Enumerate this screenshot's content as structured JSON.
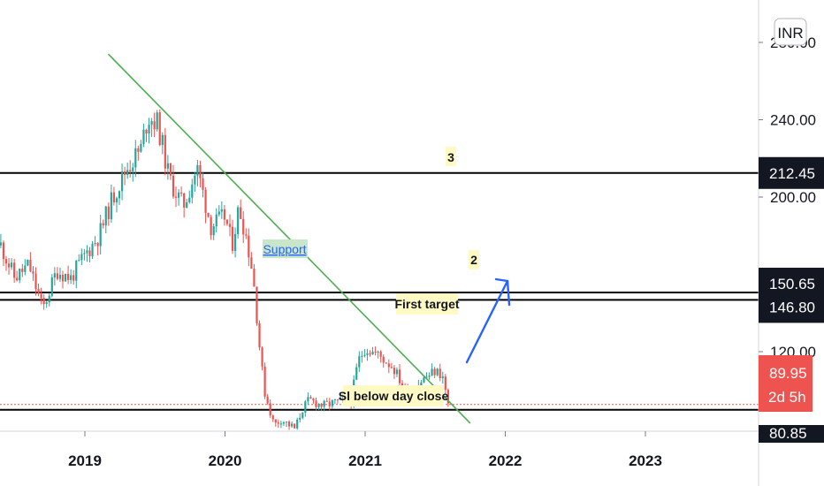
{
  "chart_data": {
    "type": "candlestick",
    "currency": "INR",
    "x_ticks": [
      "2019",
      "2020",
      "2021",
      "2022",
      "2023"
    ],
    "y_ticks": [
      "280.00",
      "240.00",
      "200.00",
      "120.00"
    ],
    "ylim": [
      78,
      282
    ],
    "grid": false,
    "last_price": {
      "value": "89.95",
      "countdown": "2d 5h",
      "color": "#ef5350"
    },
    "cropped_tag": "80.85",
    "levels": [
      {
        "price": 212.45,
        "label": "212.45"
      },
      {
        "price": 150.65,
        "label": "150.65"
      },
      {
        "price": 146.8,
        "label": "146.80"
      },
      {
        "price": 89.95,
        "label": ""
      }
    ],
    "trendline": {
      "from": [
        "2019-03",
        274
      ],
      "to": [
        "2021-10",
        83
      ],
      "color": "#4caf50"
    },
    "annotations": [
      {
        "text": "3",
        "at": [
          "2021-06",
          203
        ]
      },
      {
        "text": "2",
        "at": [
          "2021-08",
          147
        ]
      },
      {
        "text": "Support",
        "at": [
          "2020-05",
          150
        ]
      },
      {
        "text": "First target",
        "at": [
          "2021-05",
          128
        ]
      },
      {
        "text": "Sl below day close",
        "at": [
          "2021-01",
          85
        ]
      }
    ],
    "up_color": "#26a69a",
    "down_color": "#ef5350",
    "weekly_close": [
      [
        2018.3,
        190
      ],
      [
        2018.4,
        175
      ],
      [
        2018.5,
        158
      ],
      [
        2018.6,
        165
      ],
      [
        2018.7,
        142
      ],
      [
        2018.8,
        162
      ],
      [
        2018.9,
        158
      ],
      [
        2019.0,
        170
      ],
      [
        2019.1,
        180
      ],
      [
        2019.2,
        200
      ],
      [
        2019.3,
        215
      ],
      [
        2019.4,
        225
      ],
      [
        2019.45,
        242
      ],
      [
        2019.52,
        238
      ],
      [
        2019.6,
        210
      ],
      [
        2019.7,
        195
      ],
      [
        2019.8,
        215
      ],
      [
        2019.9,
        185
      ],
      [
        2020.0,
        190
      ],
      [
        2020.05,
        175
      ],
      [
        2020.1,
        195
      ],
      [
        2020.15,
        180
      ],
      [
        2020.2,
        160
      ],
      [
        2020.25,
        120
      ],
      [
        2020.28,
        100
      ],
      [
        2020.35,
        82
      ],
      [
        2020.4,
        85
      ],
      [
        2020.5,
        80
      ],
      [
        2020.55,
        90
      ],
      [
        2020.6,
        95
      ],
      [
        2020.7,
        92
      ],
      [
        2020.8,
        94
      ],
      [
        2020.9,
        95
      ],
      [
        2020.95,
        115
      ],
      [
        2021.0,
        122
      ],
      [
        2021.1,
        118
      ],
      [
        2021.2,
        112
      ],
      [
        2021.3,
        98
      ],
      [
        2021.4,
        105
      ],
      [
        2021.5,
        110
      ],
      [
        2021.55,
        108
      ],
      [
        2021.6,
        90
      ]
    ]
  }
}
